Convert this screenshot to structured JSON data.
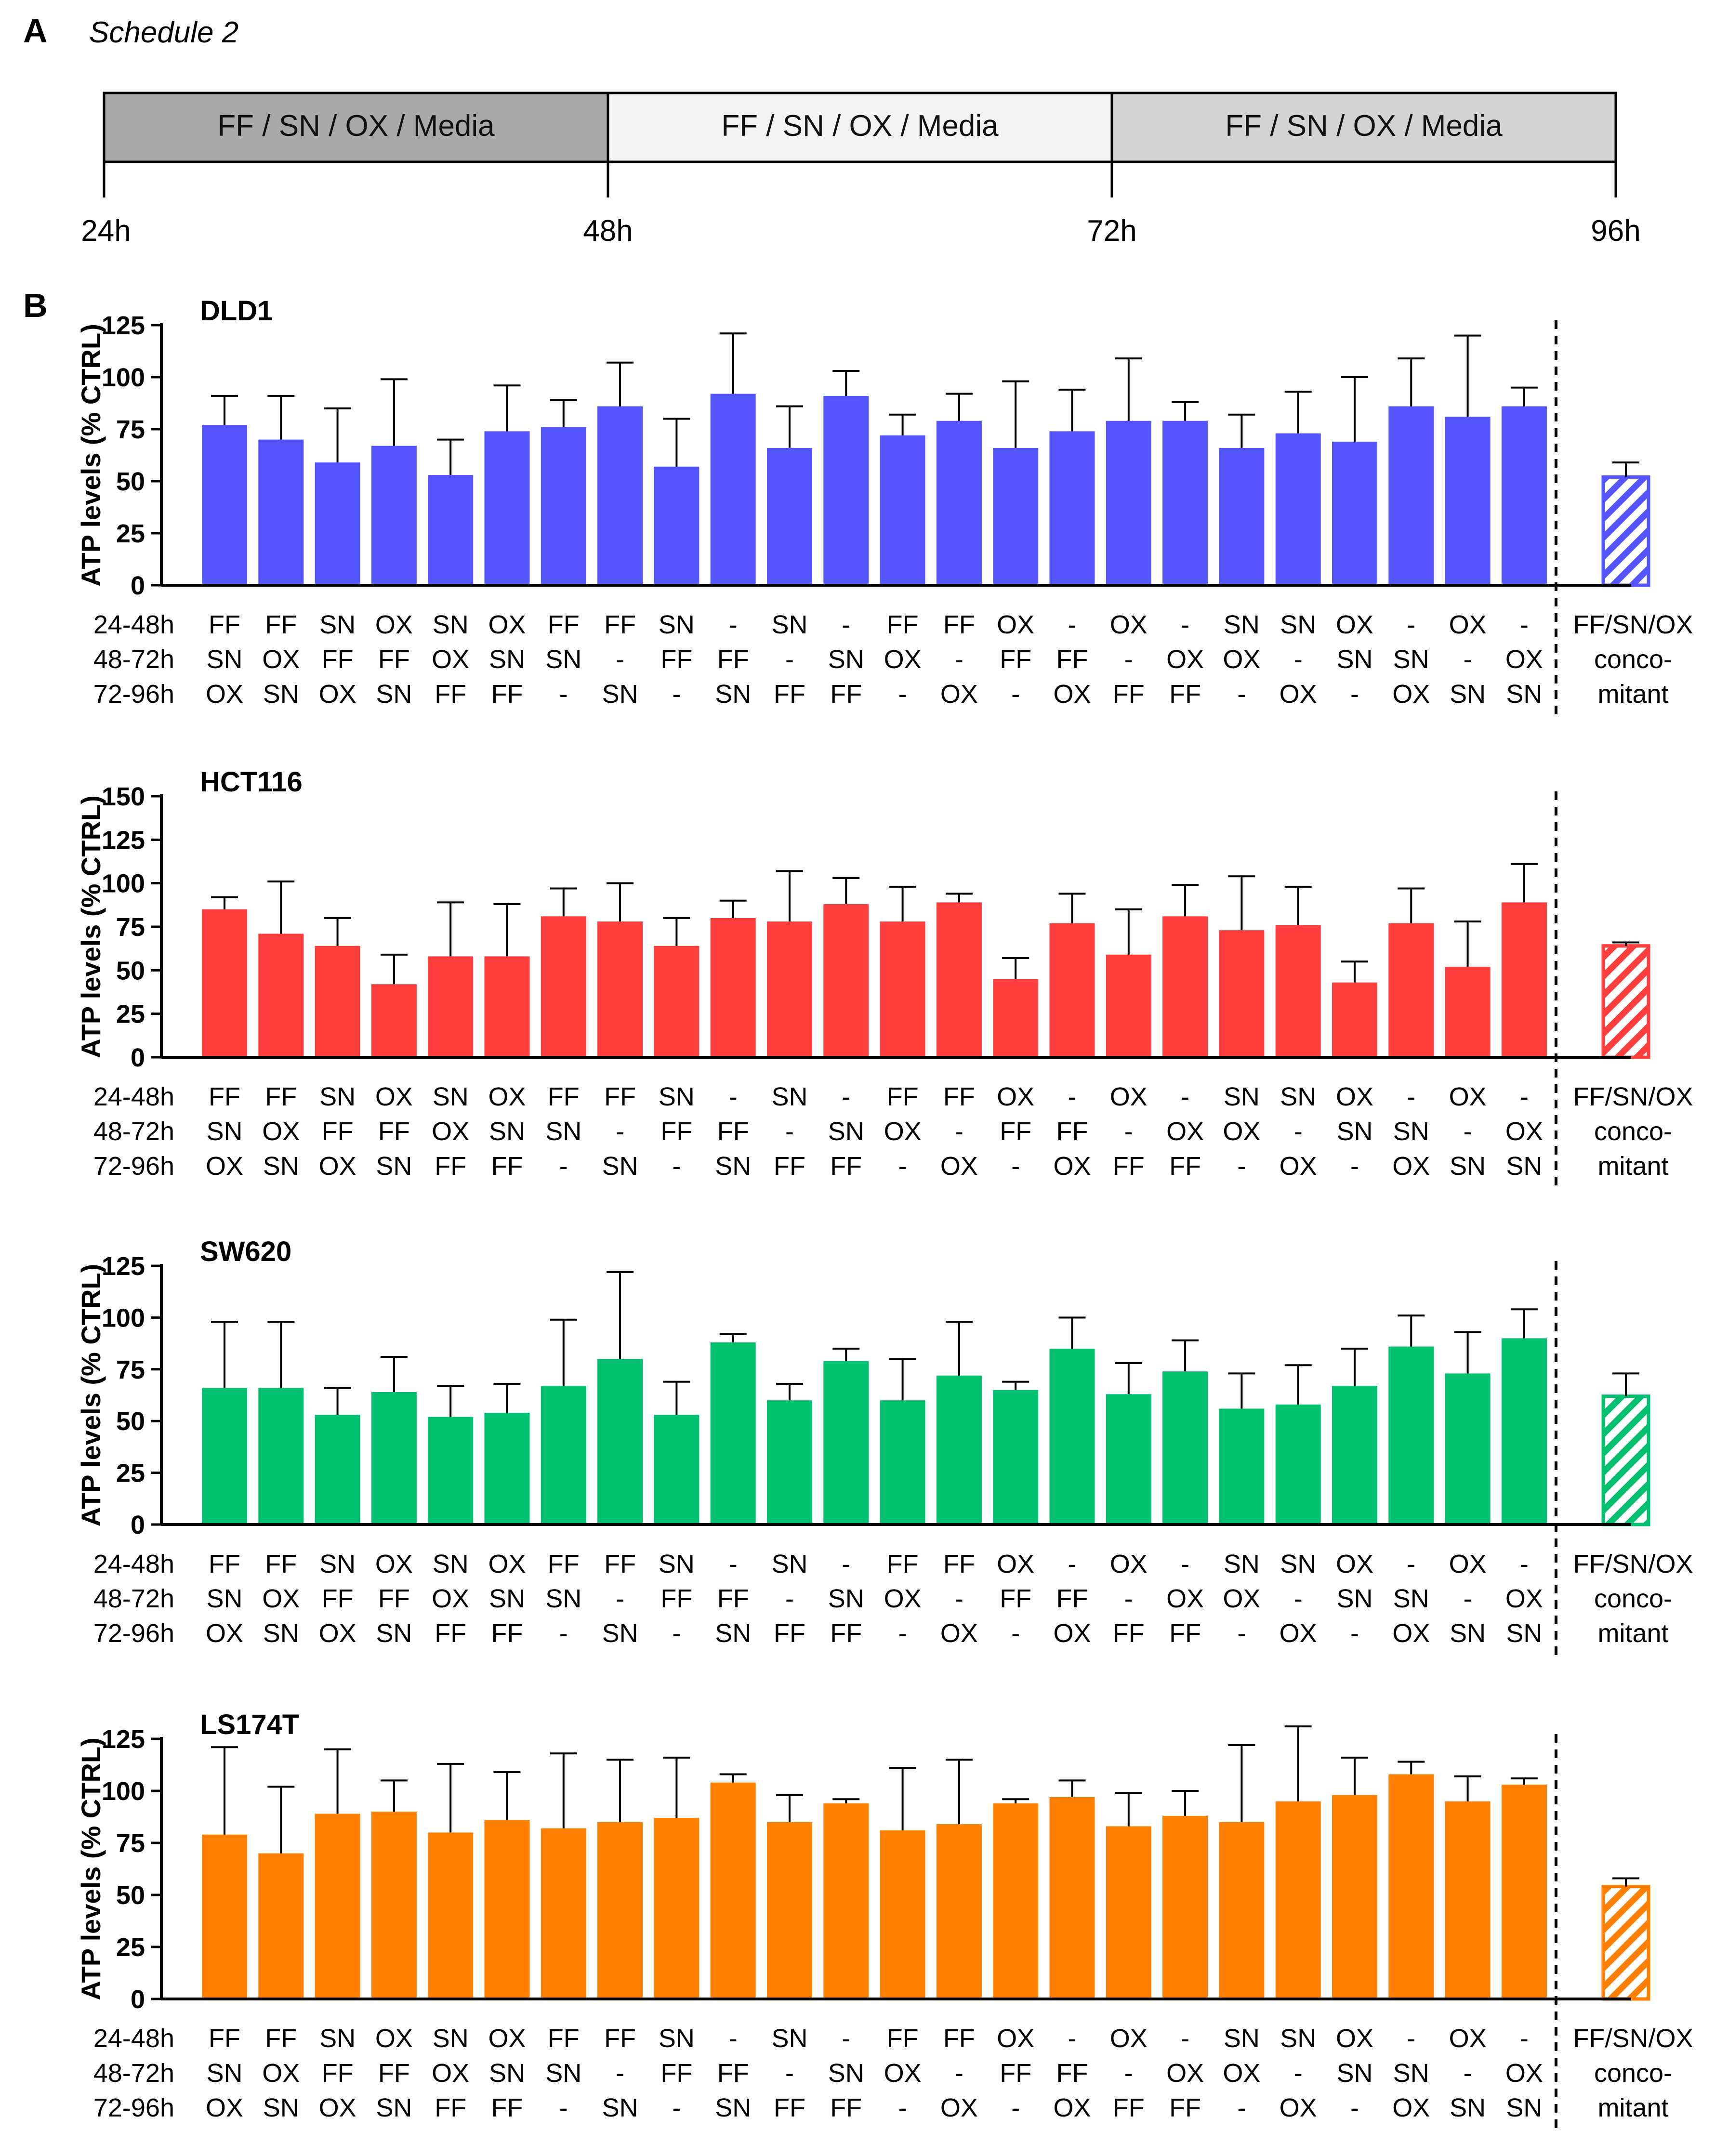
{
  "panel_a": {
    "letter": "A",
    "schedule_title": "Schedule 2",
    "segments": [
      {
        "label": "FF / SN / OX / Media",
        "color": "#a9a9a9"
      },
      {
        "label": "FF / SN / OX / Media",
        "color": "#f2f2f2"
      },
      {
        "label": "FF / SN / OX / Media",
        "color": "#d5d2d2"
      }
    ],
    "timepoints": [
      "24h",
      "48h",
      "72h",
      "96h"
    ]
  },
  "panel_b": {
    "letter": "B",
    "row_labels": [
      "24-48h",
      "48-72h",
      "72-96h"
    ],
    "schedules": [
      [
        "FF",
        "SN",
        "OX"
      ],
      [
        "FF",
        "OX",
        "SN"
      ],
      [
        "SN",
        "FF",
        "OX"
      ],
      [
        "OX",
        "FF",
        "SN"
      ],
      [
        "SN",
        "OX",
        "FF"
      ],
      [
        "OX",
        "SN",
        "FF"
      ],
      [
        "FF",
        "SN",
        "-"
      ],
      [
        "FF",
        "-",
        "SN"
      ],
      [
        "SN",
        "FF",
        "-"
      ],
      [
        "-",
        "FF",
        "SN"
      ],
      [
        "SN",
        "-",
        "FF"
      ],
      [
        "-",
        "SN",
        "FF"
      ],
      [
        "FF",
        "OX",
        "-"
      ],
      [
        "FF",
        "-",
        "OX"
      ],
      [
        "OX",
        "FF",
        "-"
      ],
      [
        "-",
        "FF",
        "OX"
      ],
      [
        "OX",
        "-",
        "FF"
      ],
      [
        "-",
        "OX",
        "FF"
      ],
      [
        "SN",
        "OX",
        "-"
      ],
      [
        "SN",
        "-",
        "OX"
      ],
      [
        "OX",
        "SN",
        "-"
      ],
      [
        "-",
        "SN",
        "OX"
      ],
      [
        "OX",
        "-",
        "SN"
      ],
      [
        "-",
        "OX",
        "SN"
      ]
    ],
    "concomitant_label": [
      "FF/SN/OX",
      "conco-",
      "mitant"
    ]
  },
  "chart_data": [
    {
      "type": "bar",
      "title": "DLD1",
      "ylabel": "ATP levels (% CTRL)",
      "color": "#5555ff",
      "ylim": [
        0,
        125
      ],
      "yticks": [
        0,
        25,
        50,
        75,
        100,
        125
      ],
      "values": [
        77,
        70,
        59,
        67,
        53,
        74,
        76,
        86,
        57,
        92,
        66,
        91,
        72,
        79,
        66,
        74,
        79,
        79,
        66,
        73,
        69,
        86,
        81,
        86
      ],
      "errors": [
        14,
        21,
        26,
        32,
        17,
        22,
        13,
        21,
        23,
        29,
        20,
        12,
        10,
        13,
        32,
        20,
        30,
        9,
        16,
        20,
        31,
        23,
        39,
        9
      ],
      "concomitant": {
        "value": 52,
        "error": 7
      }
    },
    {
      "type": "bar",
      "title": "HCT116",
      "ylabel": "ATP levels (% CTRL)",
      "color": "#fe3d3d",
      "ylim": [
        0,
        150
      ],
      "yticks": [
        0,
        25,
        50,
        75,
        100,
        125,
        150
      ],
      "values": [
        85,
        71,
        64,
        42,
        58,
        58,
        81,
        78,
        64,
        80,
        78,
        88,
        78,
        89,
        45,
        77,
        59,
        81,
        73,
        76,
        43,
        77,
        52,
        89
      ],
      "errors": [
        7,
        30,
        16,
        17,
        31,
        30,
        16,
        22,
        16,
        10,
        29,
        15,
        20,
        5,
        12,
        17,
        26,
        18,
        31,
        22,
        12,
        20,
        26,
        22
      ],
      "concomitant": {
        "value": 64,
        "error": 2
      }
    },
    {
      "type": "bar",
      "title": "SW620",
      "ylabel": "ATP levels (% CTRL)",
      "color": "#00c070",
      "ylim": [
        0,
        125
      ],
      "yticks": [
        0,
        25,
        50,
        75,
        100,
        125
      ],
      "values": [
        66,
        66,
        53,
        64,
        52,
        54,
        67,
        80,
        53,
        88,
        60,
        79,
        60,
        72,
        65,
        85,
        63,
        74,
        56,
        58,
        67,
        86,
        73,
        90
      ],
      "errors": [
        32,
        32,
        13,
        17,
        15,
        14,
        32,
        42,
        16,
        4,
        8,
        6,
        20,
        26,
        4,
        15,
        15,
        15,
        17,
        19,
        18,
        15,
        20,
        14
      ],
      "concomitant": {
        "value": 62,
        "error": 11
      }
    },
    {
      "type": "bar",
      "title": "LS174T",
      "ylabel": "ATP levels (% CTRL)",
      "color": "#ff8000",
      "ylim": [
        0,
        125
      ],
      "yticks": [
        0,
        25,
        50,
        75,
        100,
        125
      ],
      "values": [
        79,
        70,
        89,
        90,
        80,
        86,
        82,
        85,
        87,
        104,
        85,
        94,
        81,
        84,
        94,
        97,
        83,
        88,
        85,
        95,
        98,
        108,
        95,
        103
      ],
      "errors": [
        42,
        32,
        31,
        15,
        33,
        23,
        36,
        30,
        29,
        4,
        13,
        2,
        30,
        31,
        2,
        8,
        16,
        12,
        37,
        36,
        18,
        6,
        12,
        3
      ],
      "concomitant": {
        "value": 54,
        "error": 4
      }
    }
  ]
}
